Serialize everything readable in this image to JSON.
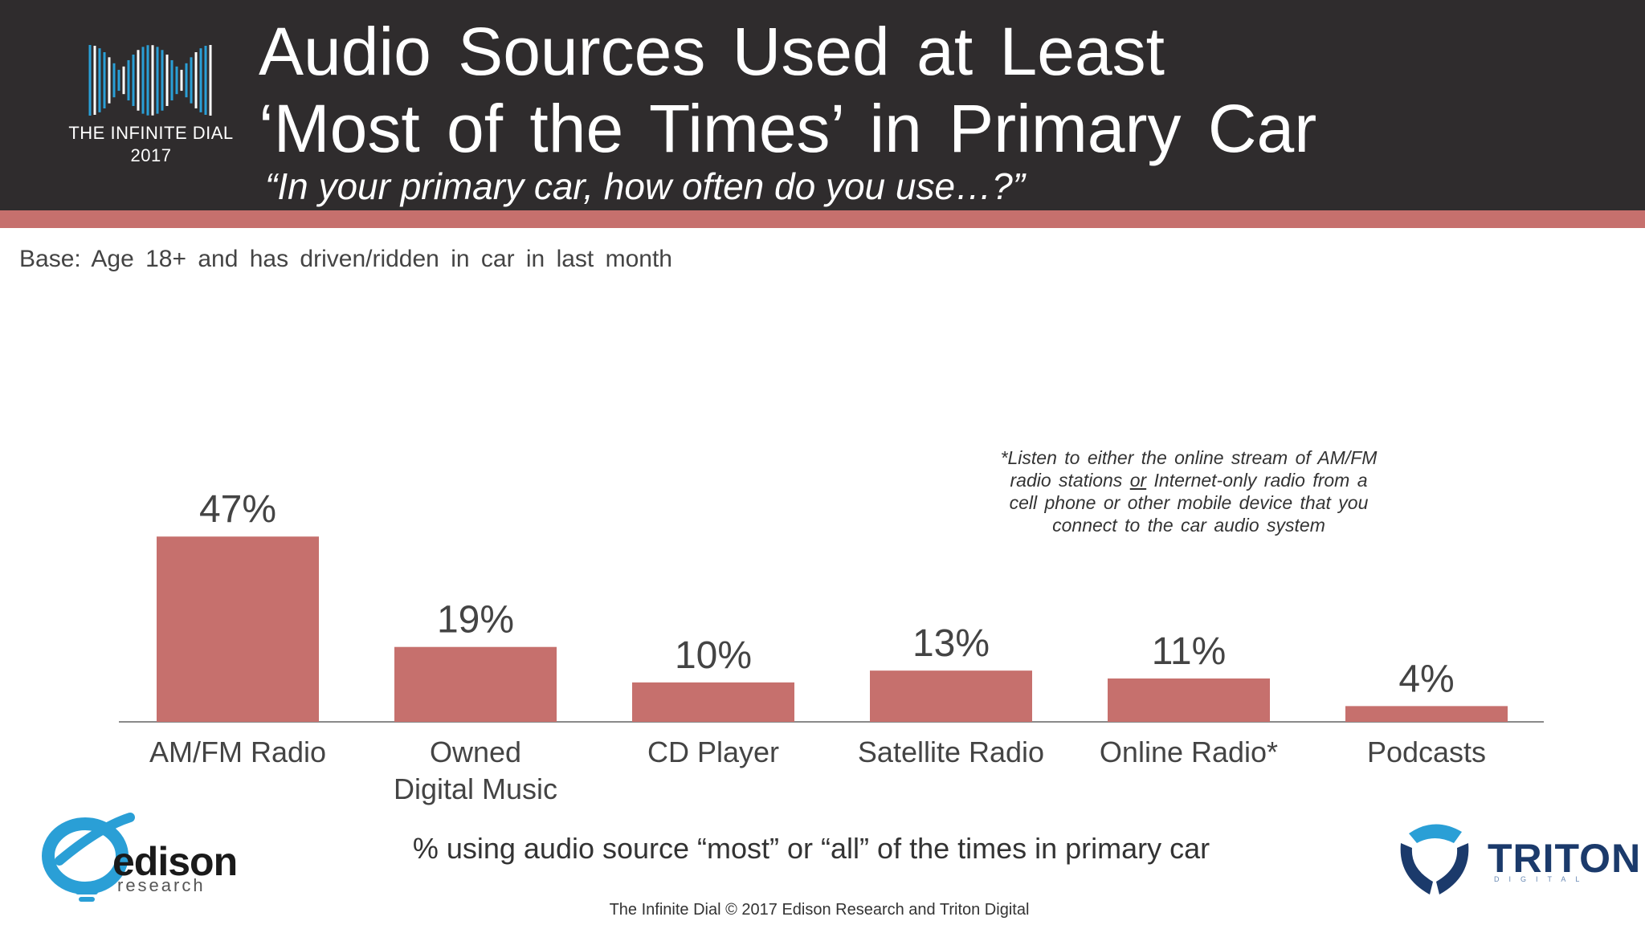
{
  "header": {
    "brand_name": "THE INFINITE DIAL",
    "brand_year": "2017",
    "title_line1": "Audio Sources Used at Least",
    "title_line2": "‘Most of the Times’ in Primary Car",
    "subtitle": "“In your primary car, how often do you use…?”"
  },
  "base_note": "Base: Age 18+ and has driven/ridden in car in last month",
  "footnote": {
    "part1": "*Listen to either the online stream of AM/FM radio stations ",
    "emphasis": "or",
    "part2": " Internet-only radio from a cell phone or other mobile device that you connect to the car audio system"
  },
  "chart_data": {
    "type": "bar",
    "categories": [
      [
        "AM/FM Radio"
      ],
      [
        "Owned",
        "Digital Music"
      ],
      [
        "CD Player"
      ],
      [
        "Satellite Radio"
      ],
      [
        "Online Radio*"
      ],
      [
        "Podcasts"
      ]
    ],
    "values": [
      47,
      19,
      10,
      13,
      11,
      4
    ],
    "value_labels": [
      "47%",
      "19%",
      "10%",
      "13%",
      "11%",
      "4%"
    ],
    "unit": "%",
    "xlabel": "% using audio source “most” or “all” of the times in primary car",
    "bar_color": "#c6706d",
    "grid": false
  },
  "footer": {
    "copyright": "The Infinite Dial   © 2017 Edison Research and Triton Digital",
    "edison_name": "edison",
    "edison_sub": "research",
    "triton_name": "TRITON",
    "triton_sub": "DIGITAL"
  },
  "colors": {
    "header_bg": "#2f2c2d",
    "accent": "#c6706d",
    "brand_blue": "#2a9fd6",
    "triton_navy": "#1b3a6b"
  }
}
